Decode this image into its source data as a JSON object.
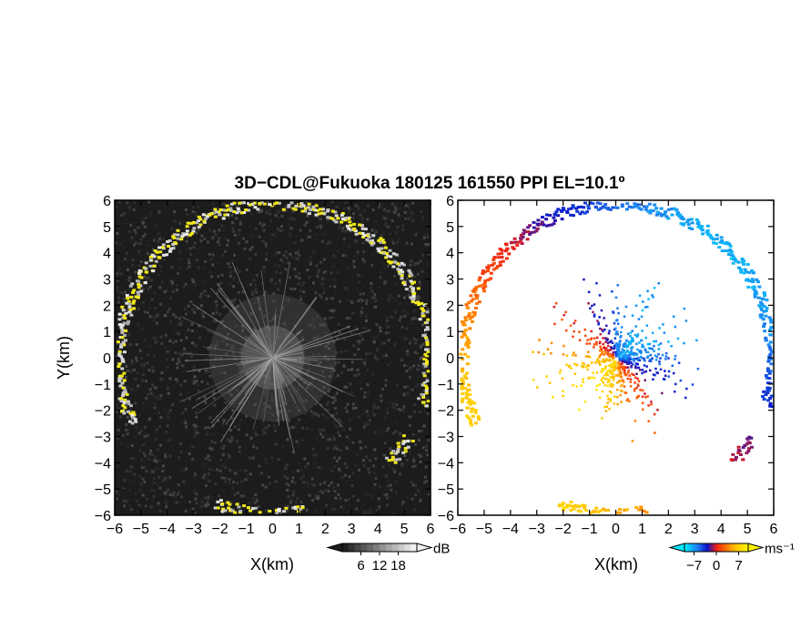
{
  "chart_data": [
    {
      "type": "heatmap",
      "title": "3D−CDL@Fukuoka 180125 161550 PPI EL=10.1º",
      "xlabel": "X(km)",
      "ylabel": "Y(km)",
      "xlim": [
        -6,
        6
      ],
      "ylim": [
        -6,
        6
      ],
      "xticks": [
        "−6",
        "−5",
        "−4",
        "−3",
        "−2",
        "−1",
        "0",
        "1",
        "2",
        "3",
        "4",
        "5",
        "6"
      ],
      "yticks": [
        "6",
        "5",
        "4",
        "3",
        "2",
        "1",
        "0",
        "−1",
        "−2",
        "−3",
        "−4",
        "−5",
        "−6"
      ],
      "field": "SNR",
      "background": "#1c1c1c",
      "colorbar": {
        "unit": "dB",
        "ticks": [
          "6",
          "12",
          "18"
        ],
        "range": [
          0,
          24
        ]
      },
      "ring_radius_km": 5.9
    },
    {
      "type": "heatmap",
      "xlabel": "X(km)",
      "xlim": [
        -6,
        6
      ],
      "ylim": [
        -6,
        6
      ],
      "xticks": [
        "−6",
        "−5",
        "−4",
        "−3",
        "−2",
        "−1",
        "0",
        "1",
        "2",
        "3",
        "4",
        "5",
        "6"
      ],
      "yticks": [
        "6",
        "5",
        "4",
        "3",
        "2",
        "1",
        "0",
        "−1",
        "−2",
        "−3",
        "−4",
        "−5",
        "−6"
      ],
      "field": "Doppler velocity",
      "colorbar": {
        "unit": "ms⁻¹",
        "ticks": [
          "−7",
          "0",
          "7"
        ],
        "range": [
          -10,
          10
        ]
      },
      "ring_radius_km": 5.9
    }
  ]
}
